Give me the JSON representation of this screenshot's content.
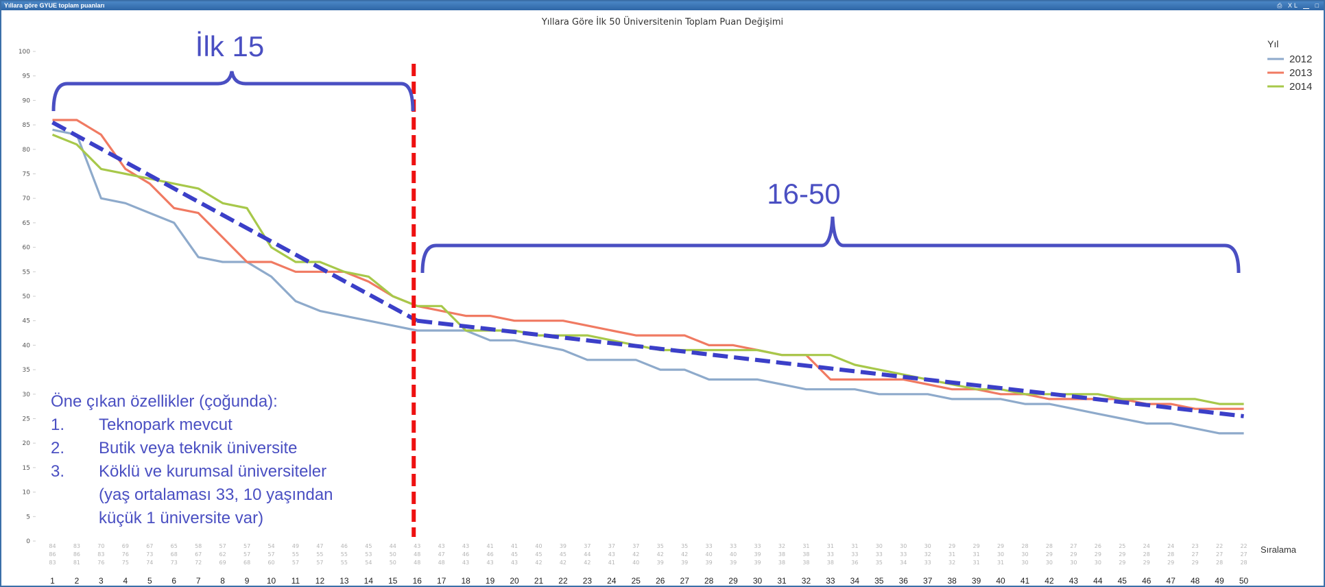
{
  "window": {
    "title": "Yıllara göre GYUE toplam puanları",
    "controls": [
      {
        "name": "print-icon",
        "glyph": "⎙"
      },
      {
        "name": "excel-icon",
        "glyph": "XL"
      },
      {
        "name": "minimize-icon",
        "glyph": "▁"
      },
      {
        "name": "maximize-icon",
        "glyph": "□"
      }
    ]
  },
  "chart_data": {
    "type": "line",
    "title": "Yıllara Göre İlk 50 Üniversitenin Toplam Puan Değişimi",
    "xlabel": "Sıralama",
    "ylabel": "",
    "ylim": [
      0,
      100
    ],
    "yticks": [
      0,
      5,
      10,
      15,
      20,
      25,
      30,
      35,
      40,
      45,
      50,
      55,
      60,
      65,
      70,
      75,
      80,
      85,
      90,
      95,
      100
    ],
    "x": [
      1,
      2,
      3,
      4,
      5,
      6,
      7,
      8,
      9,
      10,
      11,
      12,
      13,
      14,
      15,
      16,
      17,
      18,
      19,
      20,
      21,
      22,
      23,
      24,
      25,
      26,
      27,
      28,
      29,
      30,
      31,
      32,
      33,
      34,
      35,
      36,
      37,
      38,
      39,
      40,
      41,
      42,
      43,
      44,
      45,
      46,
      47,
      48,
      49,
      50
    ],
    "grid": false,
    "legend": {
      "title": "Yıl",
      "position": "top-right"
    },
    "series": [
      {
        "name": "2012",
        "color": "#8eaacb",
        "values": [
          84,
          83,
          70,
          69,
          67,
          65,
          58,
          57,
          57,
          54,
          49,
          47,
          46,
          45,
          44,
          43,
          43,
          43,
          41,
          41,
          40,
          39,
          37,
          37,
          37,
          35,
          35,
          33,
          33,
          33,
          32,
          31,
          31,
          31,
          30,
          30,
          30,
          29,
          29,
          29,
          28,
          28,
          27,
          26,
          25,
          24,
          24,
          23,
          22,
          22
        ]
      },
      {
        "name": "2013",
        "color": "#f07a62",
        "values": [
          86,
          86,
          83,
          76,
          73,
          68,
          67,
          62,
          57,
          57,
          55,
          55,
          55,
          53,
          50,
          48,
          47,
          46,
          46,
          45,
          45,
          45,
          44,
          43,
          42,
          42,
          42,
          40,
          40,
          39,
          38,
          38,
          33,
          33,
          33,
          33,
          32,
          31,
          31,
          30,
          30,
          29,
          29,
          29,
          29,
          28,
          28,
          27,
          27,
          27
        ]
      },
      {
        "name": "2014",
        "color": "#a7c84a",
        "values": [
          83,
          81,
          76,
          75,
          74,
          73,
          72,
          69,
          68,
          60,
          57,
          57,
          55,
          54,
          50,
          48,
          48,
          43,
          43,
          43,
          42,
          42,
          42,
          41,
          40,
          39,
          39,
          39,
          39,
          39,
          38,
          38,
          38,
          36,
          35,
          34,
          33,
          32,
          31,
          31,
          30,
          30,
          30,
          30,
          29,
          29,
          29,
          29,
          28,
          28
        ]
      }
    ],
    "value_table": [
      [
        "84",
        "83",
        "70",
        "69",
        "67",
        "65",
        "58",
        "57",
        "57",
        "54",
        "49",
        "47",
        "46",
        "45",
        "44",
        "43",
        "43",
        "43",
        "41",
        "41",
        "40",
        "39",
        "37",
        "37",
        "37",
        "35",
        "35",
        "33",
        "33",
        "33",
        "32",
        "31",
        "31",
        "31",
        "30",
        "30",
        "30",
        "29",
        "29",
        "29",
        "28",
        "28",
        "27",
        "26",
        "25",
        "24",
        "24",
        "23",
        "22",
        "22"
      ],
      [
        "86",
        "86",
        "83",
        "76",
        "73",
        "68",
        "67",
        "62",
        "57",
        "57",
        "55",
        "55",
        "55",
        "53",
        "50",
        "48",
        "47",
        "46",
        "46",
        "45",
        "45",
        "45",
        "44",
        "43",
        "42",
        "42",
        "42",
        "40",
        "40",
        "39",
        "38",
        "38",
        "33",
        "33",
        "33",
        "33",
        "32",
        "31",
        "31",
        "30",
        "30",
        "29",
        "29",
        "29",
        "29",
        "28",
        "28",
        "27",
        "27",
        "27"
      ],
      [
        "83",
        "81",
        "76",
        "75",
        "74",
        "73",
        "72",
        "69",
        "68",
        "60",
        "57",
        "57",
        "55",
        "54",
        "50",
        "48",
        "48",
        "43",
        "43",
        "43",
        "42",
        "42",
        "42",
        "41",
        "40",
        "39",
        "39",
        "39",
        "39",
        "39",
        "38",
        "38",
        "38",
        "36",
        "35",
        "34",
        "33",
        "32",
        "31",
        "31",
        "30",
        "30",
        "30",
        "30",
        "29",
        "29",
        "29",
        "29",
        "28",
        "28"
      ]
    ],
    "annotations": {
      "top15_label": "İlk 15",
      "rest_label": "16-50",
      "features_title": "Öne çıkan özellikler (çoğunda):",
      "features": [
        {
          "num": "1.",
          "text": "Teknopark mevcut"
        },
        {
          "num": "2.",
          "text": "Butik veya teknik üniversite"
        },
        {
          "num": "3.",
          "text": "Köklü ve kurumsal üniversiteler"
        }
      ],
      "feature_note_lines": [
        "(yaş ortalaması 33, 10 yaşından",
        "küçük 1 üniversite var)"
      ],
      "divider_rank": 16,
      "trend_top15": [
        [
          1,
          85.5
        ],
        [
          16,
          45
        ]
      ],
      "trend_rest": [
        [
          16,
          45
        ],
        [
          50,
          25.5
        ]
      ],
      "bracket_color": "#4a4fc2",
      "divider_color": "#ee1111",
      "trend_color": "#3b3fc8"
    }
  }
}
